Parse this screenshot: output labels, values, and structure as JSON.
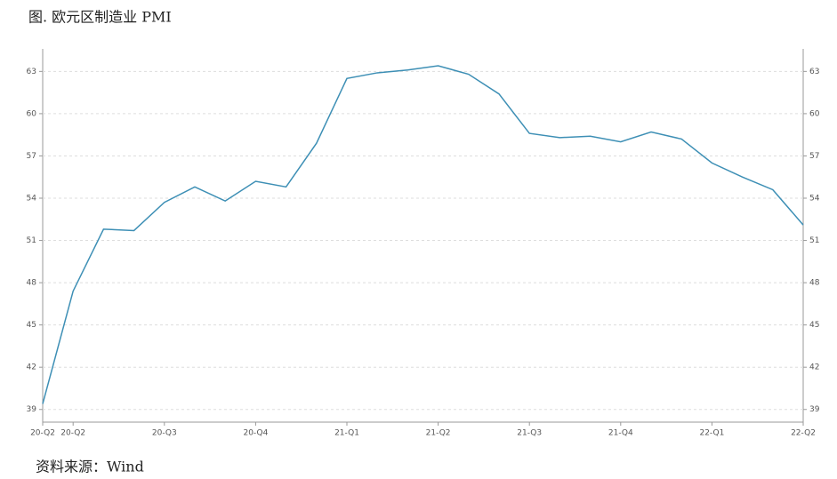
{
  "chart_data": {
    "type": "line",
    "title": "图. 欧元区制造业 PMI",
    "source": "资料来源：Wind",
    "categories": [
      "20-Q2",
      "20-Q2",
      null,
      null,
      "20-Q3",
      null,
      null,
      "20-Q4",
      null,
      null,
      "21-Q1",
      null,
      null,
      "21-Q2",
      null,
      null,
      "21-Q3",
      null,
      null,
      "21-Q4",
      null,
      null,
      "22-Q1",
      null,
      null,
      "22-Q2"
    ],
    "values": [
      39.4,
      47.4,
      51.8,
      51.7,
      53.7,
      54.8,
      53.8,
      55.2,
      54.8,
      57.9,
      62.5,
      62.9,
      63.1,
      63.4,
      62.8,
      61.4,
      58.6,
      58.3,
      58.4,
      58.0,
      58.7,
      58.2,
      56.5,
      55.5,
      54.6,
      52.1
    ],
    "color": "#3d8fb5",
    "ylim": [
      38.1,
      64.6
    ],
    "yticks": [
      39,
      42,
      45,
      48,
      51,
      54,
      57,
      60,
      63
    ],
    "grid": true
  }
}
